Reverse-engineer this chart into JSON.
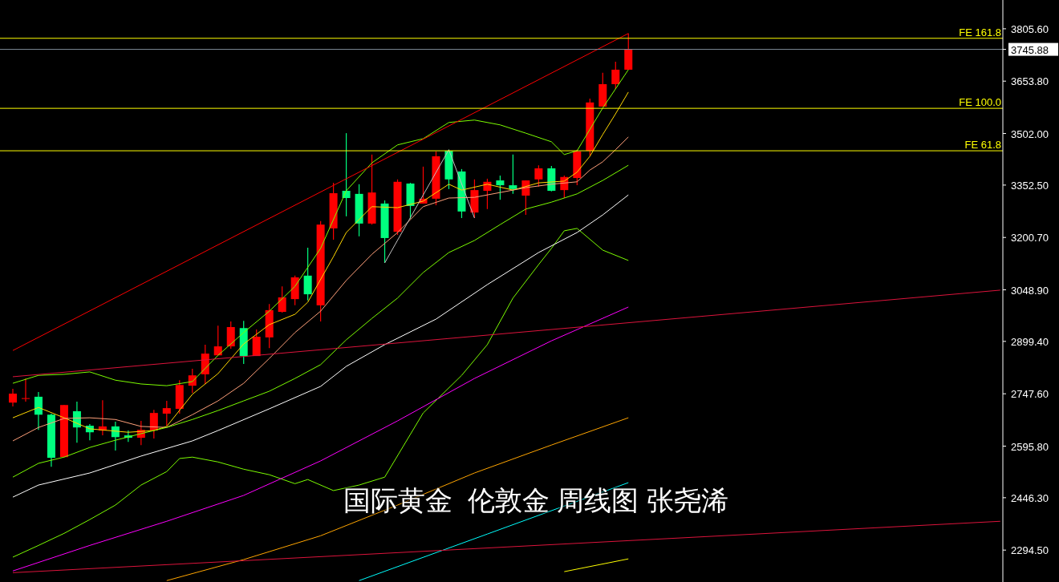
{
  "chart_data": {
    "type": "candlestick",
    "annotations": [
      "国际黄金  伦敦金 周线图 张尧浠"
    ],
    "categories": [
      null,
      null,
      null,
      null,
      null,
      null,
      null,
      null,
      null,
      null,
      null,
      null,
      null,
      null,
      null,
      null,
      null,
      null,
      null,
      null,
      null,
      null,
      null,
      null,
      null,
      null,
      null,
      null,
      null,
      null,
      null,
      null,
      null,
      null,
      null,
      null,
      null,
      null,
      null,
      null,
      null,
      null,
      null,
      null,
      null,
      null,
      null,
      null,
      null,
      null,
      null,
      null,
      null,
      null,
      null,
      null,
      null,
      null,
      null,
      null,
      null,
      null,
      null,
      null,
      null,
      null,
      null,
      null,
      null,
      null,
      null,
      null,
      null,
      null,
      null,
      null,
      null,
      null
    ],
    "ohlc": [
      [
        2722,
        2762,
        2711,
        2748
      ],
      [
        2733,
        2792,
        2725,
        2735
      ],
      [
        2739,
        2753,
        2643,
        2687
      ],
      [
        2687,
        2690,
        2536,
        2562
      ],
      [
        2564,
        2715,
        2564,
        2715
      ],
      [
        2697,
        2725,
        2606,
        2650
      ],
      [
        2655,
        2660,
        2613,
        2636
      ],
      [
        2641,
        2729,
        2627,
        2653
      ],
      [
        2653,
        2667,
        2583,
        2622
      ],
      [
        2627,
        2641,
        2608,
        2620
      ],
      [
        2620,
        2669,
        2599,
        2643
      ],
      [
        2641,
        2701,
        2618,
        2692
      ],
      [
        2690,
        2727,
        2655,
        2706
      ],
      [
        2704,
        2787,
        2690,
        2773
      ],
      [
        2771,
        2820,
        2750,
        2801
      ],
      [
        2804,
        2890,
        2776,
        2864
      ],
      [
        2859,
        2945,
        2859,
        2885
      ],
      [
        2885,
        2957,
        2878,
        2941
      ],
      [
        2938,
        2959,
        2834,
        2857
      ],
      [
        2857,
        2934,
        2857,
        2913
      ],
      [
        2911,
        3008,
        2880,
        2990
      ],
      [
        2985,
        3059,
        2983,
        3027
      ],
      [
        3022,
        3090,
        3004,
        3085
      ],
      [
        3090,
        3171,
        3018,
        3036
      ],
      [
        3004,
        3248,
        2957,
        3238
      ],
      [
        3227,
        3359,
        3194,
        3329
      ],
      [
        3336,
        3503,
        3262,
        3315
      ],
      [
        3327,
        3355,
        3204,
        3241
      ],
      [
        3241,
        3441,
        3238,
        3331
      ],
      [
        3299,
        3308,
        3127,
        3199
      ],
      [
        3217,
        3369,
        3208,
        3362
      ],
      [
        3357,
        3359,
        3255,
        3292
      ],
      [
        3299,
        3406,
        3299,
        3313
      ],
      [
        3313,
        3450,
        3294,
        3436
      ],
      [
        3452,
        3455,
        3341,
        3369
      ],
      [
        3392,
        3399,
        3257,
        3276
      ],
      [
        3273,
        3369,
        3257,
        3338
      ],
      [
        3336,
        3371,
        3283,
        3362
      ],
      [
        3366,
        3380,
        3310,
        3352
      ],
      [
        3352,
        3441,
        3327,
        3341
      ],
      [
        3322,
        3366,
        3266,
        3366
      ],
      [
        3369,
        3410,
        3348,
        3401
      ],
      [
        3401,
        3408,
        3334,
        3336
      ],
      [
        3338,
        3380,
        3315,
        3376
      ],
      [
        3373,
        3455,
        3352,
        3450
      ],
      [
        3452,
        3603,
        3438,
        3592
      ],
      [
        3580,
        3678,
        3580,
        3645
      ],
      [
        3645,
        3710,
        3631,
        3687
      ],
      [
        3687,
        3792,
        3687,
        3745.88
      ],
      null,
      null,
      null,
      null,
      null,
      null,
      null,
      null,
      null,
      null,
      null,
      null,
      null,
      null,
      null,
      null,
      null,
      null,
      null,
      null,
      null,
      null,
      null,
      null,
      null,
      null,
      null,
      null,
      null
    ],
    "colors": [
      "#ff0000",
      "#ff0000",
      "#00ff7f",
      "#00ff7f",
      "#ff0000",
      "#00ff7f",
      "#00ff7f",
      "#ff0000",
      "#00ff7f",
      "#00ff7f",
      "#ff0000",
      "#ff0000",
      "#ff0000",
      "#ff0000",
      "#ff0000",
      "#ff0000",
      "#ff0000",
      "#ff0000",
      "#00ff7f",
      "#ff0000",
      "#ff0000",
      "#ff0000",
      "#ff0000",
      "#00ff7f",
      "#ff0000",
      "#ff0000",
      "#00ff7f",
      "#00ff7f",
      "#ff0000",
      "#00ff7f",
      "#ff0000",
      "#00ff7f",
      "#ff0000",
      "#ff0000",
      "#00ff7f",
      "#00ff7f",
      "#ff0000",
      "#ff0000",
      "#00ff7f",
      "#00ff7f",
      "#ff0000",
      "#ff0000",
      "#00ff7f",
      "#ff0000",
      "#ff0000",
      "#ff0000",
      "#ff0000",
      "#ff0000",
      "#ff0000",
      null,
      null,
      null,
      null,
      null,
      null,
      null,
      null,
      null,
      null,
      null,
      null,
      null,
      null,
      null,
      null,
      null,
      null,
      null,
      null,
      null,
      null,
      null,
      null,
      null,
      null,
      null,
      null,
      null
    ],
    "series": [
      {
        "type": "line",
        "color": "#ffd700",
        "values": [
          2678,
          null,
          2708,
          null,
          2678,
          null,
          2646,
          null,
          null,
          2636,
          null,
          2641,
          2653,
          null,
          2746,
          null,
          2806,
          null,
          2892,
          null,
          2948,
          null,
          2978,
          3013,
          null,
          3145,
          3215,
          null,
          3290,
          null,
          3287,
          null,
          3306,
          null,
          3355,
          3338,
          null,
          3355,
          null,
          3338,
          null,
          3359,
          null,
          3364,
          3390,
          3436,
          3499,
          3559,
          3622,
          null,
          null,
          null,
          null,
          null,
          null,
          null,
          null,
          null,
          null,
          null,
          null,
          null,
          null,
          null,
          null,
          null,
          null,
          null,
          null,
          null,
          null,
          null,
          null,
          null,
          null,
          null,
          null,
          null
        ]
      },
      {
        "type": "line",
        "color": "#ffa07a",
        "values": [
          2611,
          null,
          2650,
          null,
          2676,
          null,
          2678,
          null,
          2673,
          null,
          2653,
          null,
          2650,
          null,
          2687,
          null,
          2727,
          null,
          2778,
          null,
          2850,
          null,
          2925,
          null,
          2987,
          null,
          3076,
          null,
          3152,
          null,
          3215,
          null,
          3290,
          null,
          3315,
          null,
          3317,
          null,
          3331,
          null,
          3345,
          null,
          3355,
          null,
          3362,
          3396,
          3420,
          3455,
          3492,
          null,
          null,
          null,
          null,
          null,
          null,
          null,
          null,
          null,
          null,
          null,
          null,
          null,
          null,
          null,
          null,
          null,
          null,
          null,
          null,
          null,
          null,
          null,
          null,
          null,
          null,
          null,
          null,
          null
        ]
      },
      {
        "type": "line",
        "color": "#7cfc00",
        "values": [
          2506,
          null,
          2546,
          null,
          2564,
          null,
          2592,
          null,
          2613,
          null,
          2632,
          null,
          2650,
          null,
          2673,
          null,
          2699,
          null,
          2727,
          null,
          2755,
          null,
          2792,
          null,
          2832,
          null,
          2904,
          null,
          2966,
          null,
          3025,
          null,
          3099,
          null,
          3157,
          null,
          3192,
          null,
          3238,
          null,
          3283,
          null,
          3303,
          null,
          3327,
          null,
          3366,
          null,
          3410,
          null,
          null,
          null,
          null,
          null,
          null,
          null,
          null,
          null,
          null,
          null,
          null,
          null,
          null,
          null,
          null,
          null,
          null,
          null,
          null,
          null,
          null,
          null,
          null,
          null,
          null,
          null,
          null,
          null
        ]
      },
      {
        "type": "line",
        "color": "#7cfc00",
        "values": [
          2778,
          null,
          2801,
          null,
          2804,
          null,
          2811,
          null,
          2787,
          null,
          2776,
          null,
          2771,
          null,
          2783,
          null,
          2859,
          null,
          2925,
          null,
          2987,
          null,
          3059,
          null,
          3169,
          null,
          3336,
          null,
          3417,
          null,
          3469,
          null,
          3487,
          null,
          3534,
          null,
          3541,
          null,
          3527,
          null,
          3503,
          null,
          3478,
          3441,
          3452,
          null,
          3576,
          null,
          3687,
          null,
          null,
          null,
          null,
          null,
          null,
          null,
          null,
          null,
          null,
          null,
          null,
          null,
          null,
          null,
          null,
          null,
          null,
          null,
          null,
          null,
          null,
          null,
          null,
          null,
          null,
          null,
          null,
          null
        ]
      },
      {
        "type": "line",
        "color": "#7cfc00",
        "values": [
          2274,
          null,
          2308,
          null,
          2343,
          null,
          2383,
          null,
          2425,
          null,
          2483,
          null,
          2522,
          2560,
          2564,
          null,
          2550,
          null,
          2529,
          null,
          2513,
          null,
          2487,
          2499,
          null,
          2467,
          null,
          2483,
          null,
          2506,
          null,
          null,
          2692,
          null,
          null,
          2801,
          null,
          2890,
          null,
          3025,
          null,
          3122,
          3169,
          3220,
          3227,
          null,
          3164,
          null,
          3134,
          null,
          null,
          null,
          null,
          null,
          null,
          null,
          null,
          null,
          null,
          null,
          null,
          null,
          null,
          null,
          null,
          null,
          null,
          null,
          null,
          null,
          null,
          null,
          null,
          null,
          null,
          null,
          null,
          null
        ]
      },
      {
        "type": "line",
        "color": "#ffffff",
        "values": [
          2448,
          null,
          2483,
          null,
          null,
          null,
          2518,
          null,
          null,
          null,
          2567,
          null,
          null,
          null,
          2611,
          null,
          2641,
          null,
          null,
          null,
          2704,
          null,
          null,
          null,
          2769,
          null,
          2827,
          null,
          null,
          2890,
          null,
          null,
          null,
          2964,
          null,
          null,
          null,
          3064,
          null,
          null,
          null,
          3157,
          null,
          null,
          3215,
          null,
          3266,
          null,
          3324,
          null,
          null,
          null,
          null,
          null,
          null,
          null,
          null,
          null,
          null,
          null,
          null,
          null,
          null,
          null,
          null,
          null,
          null,
          null,
          null,
          null,
          null,
          null,
          null,
          null,
          null,
          null,
          null,
          null
        ]
      },
      {
        "type": "line",
        "color": "#ff00ff",
        "values": [
          2234,
          null,
          null,
          null,
          null,
          null,
          2308,
          null,
          null,
          null,
          null,
          null,
          2378,
          null,
          null,
          null,
          null,
          null,
          2453,
          null,
          null,
          null,
          null,
          null,
          2553,
          null,
          null,
          null,
          null,
          null,
          2669,
          null,
          null,
          null,
          null,
          null,
          2792,
          null,
          null,
          null,
          null,
          null,
          2901,
          null,
          null,
          null,
          null,
          null,
          2999,
          null,
          null,
          null,
          null,
          null,
          null,
          null,
          null,
          null,
          null,
          null,
          null,
          null,
          null,
          null,
          null,
          null,
          null,
          null,
          null,
          null,
          null,
          null,
          null,
          null,
          null,
          null,
          null,
          null
        ]
      },
      {
        "type": "line",
        "color": "#ffa500",
        "values": [
          null,
          null,
          null,
          null,
          null,
          null,
          null,
          null,
          null,
          null,
          null,
          null,
          2206,
          null,
          null,
          null,
          null,
          null,
          2267,
          null,
          null,
          null,
          null,
          null,
          2336,
          null,
          null,
          null,
          null,
          null,
          2425,
          null,
          null,
          null,
          null,
          null,
          2518,
          null,
          null,
          null,
          null,
          null,
          2599,
          null,
          null,
          null,
          null,
          null,
          2678,
          null,
          null,
          null,
          null,
          null,
          null,
          null,
          null,
          null,
          null,
          null,
          null,
          null,
          null,
          null,
          null,
          null,
          null,
          null,
          null,
          null,
          null,
          null,
          null,
          null,
          null,
          null,
          null,
          null
        ]
      },
      {
        "type": "line",
        "color": "#00ffff",
        "values": [
          null,
          null,
          null,
          null,
          null,
          null,
          null,
          null,
          null,
          null,
          null,
          null,
          null,
          null,
          null,
          null,
          null,
          null,
          null,
          null,
          null,
          null,
          null,
          null,
          null,
          null,
          null,
          2206,
          null,
          null,
          null,
          null,
          null,
          null,
          null,
          null,
          null,
          2341,
          null,
          null,
          null,
          null,
          null,
          null,
          null,
          null,
          null,
          null,
          2490,
          null,
          null,
          null,
          null,
          null,
          null,
          null,
          null,
          null,
          null,
          null,
          null,
          null,
          null,
          null,
          null,
          null,
          null,
          null,
          null,
          null,
          null,
          null,
          null,
          null,
          null,
          null,
          null,
          null
        ]
      },
      {
        "type": "line",
        "color": "#ffff00",
        "values": [
          null,
          null,
          null,
          null,
          null,
          null,
          null,
          null,
          null,
          null,
          null,
          null,
          null,
          null,
          null,
          null,
          null,
          null,
          null,
          null,
          null,
          null,
          null,
          null,
          null,
          null,
          null,
          null,
          null,
          null,
          null,
          null,
          null,
          null,
          null,
          null,
          null,
          null,
          null,
          null,
          null,
          null,
          null,
          2232,
          null,
          null,
          null,
          null,
          2269,
          null,
          null,
          null,
          null,
          null,
          null,
          null,
          null,
          null,
          null,
          null,
          null,
          null,
          null,
          null,
          null,
          null,
          null,
          null,
          null,
          null,
          null,
          null,
          null,
          null,
          null,
          null,
          null,
          null
        ]
      },
      {
        "type": "line",
        "color": "#ff0000",
        "values": [
          2873,
          null,
          null,
          null,
          null,
          null,
          null,
          null,
          null,
          null,
          null,
          null,
          null,
          null,
          null,
          null,
          null,
          null,
          null,
          null,
          null,
          null,
          null,
          null,
          null,
          null,
          null,
          null,
          null,
          null,
          null,
          null,
          null,
          null,
          null,
          null,
          null,
          null,
          null,
          null,
          null,
          null,
          null,
          null,
          null,
          null,
          null,
          null,
          3792,
          null,
          null,
          null,
          null,
          null,
          null,
          null,
          null,
          null,
          null,
          null,
          null,
          null,
          null,
          null,
          null,
          null,
          null,
          null,
          null,
          null,
          null,
          null,
          null,
          null,
          null,
          null,
          null,
          null
        ]
      },
      {
        "type": "line",
        "color": "#dc143c",
        "values": [
          2797,
          null,
          null,
          null,
          null,
          null,
          null,
          null,
          null,
          null,
          null,
          null,
          null,
          null,
          null,
          null,
          null,
          null,
          null,
          null,
          null,
          null,
          null,
          null,
          null,
          null,
          null,
          null,
          null,
          null,
          null,
          null,
          null,
          null,
          null,
          null,
          null,
          null,
          null,
          null,
          null,
          null,
          null,
          null,
          null,
          null,
          null,
          null,
          null,
          null,
          null,
          null,
          null,
          null,
          null,
          null,
          null,
          null,
          null,
          null,
          null,
          null,
          null,
          null,
          null,
          null,
          null,
          null,
          null,
          null,
          null,
          null,
          null,
          null,
          null,
          null,
          null,
          3048
        ]
      },
      {
        "type": "line",
        "color": "#dc143c",
        "values": [
          2229,
          null,
          null,
          null,
          null,
          null,
          null,
          null,
          null,
          null,
          null,
          null,
          null,
          null,
          null,
          null,
          null,
          null,
          null,
          null,
          null,
          null,
          null,
          null,
          null,
          null,
          null,
          null,
          null,
          null,
          null,
          null,
          null,
          null,
          null,
          null,
          null,
          null,
          null,
          null,
          null,
          null,
          null,
          null,
          null,
          null,
          null,
          null,
          null,
          null,
          null,
          null,
          null,
          null,
          null,
          null,
          null,
          null,
          null,
          null,
          null,
          null,
          null,
          null,
          null,
          null,
          null,
          null,
          null,
          null,
          null,
          null,
          null,
          null,
          null,
          null,
          null,
          2378
        ]
      },
      {
        "type": "line",
        "color": "#c0c0c0",
        "values": [
          null,
          null,
          null,
          null,
          null,
          null,
          null,
          null,
          null,
          null,
          null,
          null,
          null,
          null,
          null,
          null,
          null,
          null,
          null,
          null,
          null,
          null,
          null,
          null,
          null,
          null,
          null,
          null,
          null,
          3127,
          null,
          null,
          null,
          null,
          3455,
          null,
          3257,
          null,
          null,
          null,
          null,
          null,
          null,
          null,
          null,
          null,
          null,
          null,
          null,
          null,
          null,
          null,
          null,
          null,
          null,
          null,
          null,
          null,
          null,
          null,
          null,
          null,
          null,
          null,
          null,
          null,
          null,
          null,
          null,
          null,
          null,
          null,
          null,
          null,
          null,
          null,
          null,
          null
        ]
      }
    ],
    "ylim": [
      2202,
      3889
    ],
    "yticks": [
      {
        "value": 2294.5,
        "label": "2294.50"
      },
      {
        "value": 2446.3,
        "label": "2446.30"
      },
      {
        "value": 2595.8,
        "label": "2595.80"
      },
      {
        "value": 2747.6,
        "label": "2747.60"
      },
      {
        "value": 2899.4,
        "label": "2899.40"
      },
      {
        "value": 3048.9,
        "label": "3048.90"
      },
      {
        "value": 3200.7,
        "label": "3200.70"
      },
      {
        "value": 3352.5,
        "label": "3352.50"
      },
      {
        "value": 3502,
        "label": "3502.00"
      },
      {
        "value": 3653.8,
        "label": "3653.80"
      },
      {
        "value": 3745.88,
        "label": "3745.88"
      },
      {
        "value": 3805.6,
        "label": "3805.60"
      }
    ],
    "ref_lines": [
      {
        "axis": "y",
        "value": 3778,
        "label": "FE 161.8",
        "color": "#ffff00"
      },
      {
        "axis": "y",
        "value": 3575,
        "label": "FE 100.0",
        "color": "#ffff00"
      },
      {
        "axis": "y",
        "value": 3452,
        "label": "FE 61.8",
        "color": "#ffff00"
      },
      {
        "axis": "y",
        "value": 3745.88,
        "color": "#7f8c9a"
      }
    ],
    "tick_labels": "y",
    "marker": "none",
    "line_style": "solid"
  }
}
